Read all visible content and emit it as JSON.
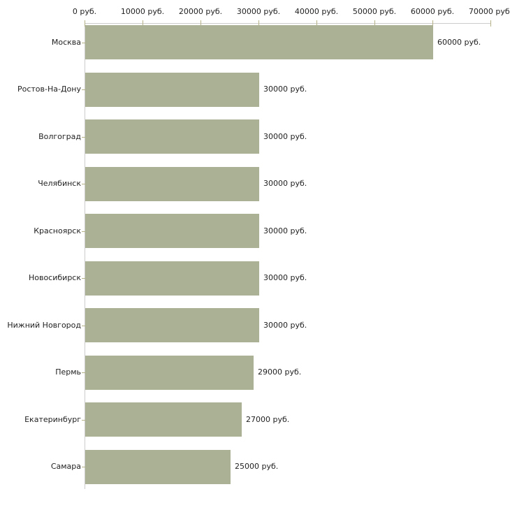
{
  "chart_data": {
    "type": "bar",
    "orientation": "horizontal",
    "title": "",
    "xlabel": "",
    "ylabel": "",
    "unit": "руб.",
    "categories": [
      "Москва",
      "Ростов-На-Дону",
      "Волгоград",
      "Челябинск",
      "Красноярск",
      "Новосибирск",
      "Нижний Новгород",
      "Пермь",
      "Екатеринбург",
      "Самара"
    ],
    "values": [
      60000,
      30000,
      30000,
      30000,
      30000,
      30000,
      30000,
      29000,
      27000,
      25000
    ],
    "value_labels": [
      "60000 руб.",
      "30000 руб.",
      "30000 руб.",
      "30000 руб.",
      "30000 руб.",
      "30000 руб.",
      "30000 руб.",
      "29000 руб.",
      "27000 руб.",
      "25000 руб."
    ],
    "x_ticks": [
      0,
      10000,
      20000,
      30000,
      40000,
      50000,
      60000,
      70000
    ],
    "x_tick_labels": [
      "0 руб.",
      "10000 руб.",
      "20000 руб.",
      "30000 руб.",
      "40000 руб.",
      "50000 руб.",
      "60000 руб.",
      "70000 руб."
    ],
    "xlim": [
      0,
      70000
    ],
    "grid": false,
    "legend": "none",
    "colors": {
      "bar": "#aab194",
      "axis_line": "#cccccc",
      "tick": "#b5b287",
      "text": "#1f1f1f",
      "background": "#ffffff"
    }
  }
}
